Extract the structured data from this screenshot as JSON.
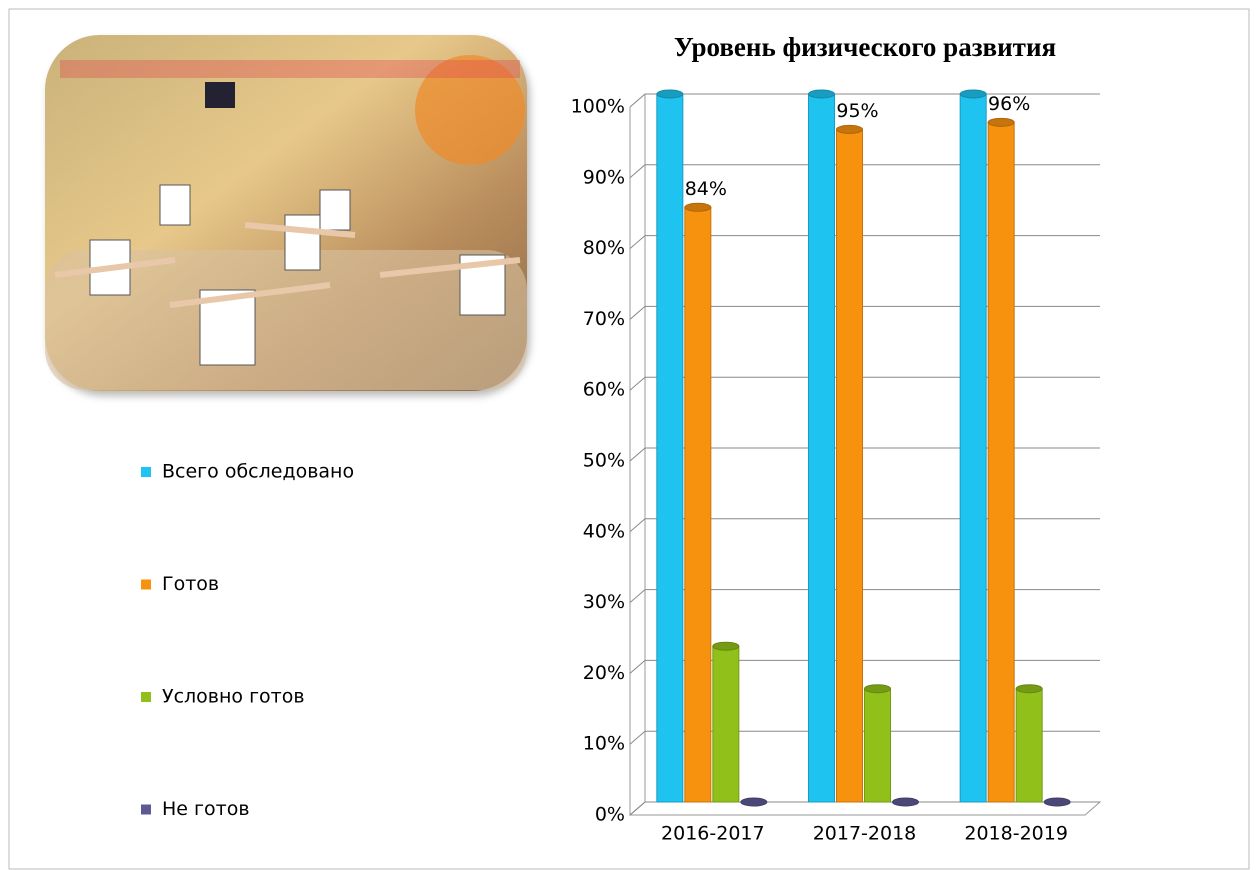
{
  "chart_data": {
    "type": "bar",
    "title": "Уровень физического развития",
    "categories": [
      "2016-2017",
      "2017-2018",
      "2018-2019"
    ],
    "series": [
      {
        "name": "Всего обследовано",
        "color": "#1ec3f0",
        "values": [
          100,
          100,
          100
        ]
      },
      {
        "name": "Готов",
        "color": "#f7920f",
        "values": [
          84,
          95,
          96
        ],
        "value_labels": [
          "84%",
          "95%",
          "96%"
        ]
      },
      {
        "name": "Условно готов",
        "color": "#92c01a",
        "values": [
          22,
          16,
          16
        ]
      },
      {
        "name": "Не готов",
        "color": "#5b5a94",
        "values": [
          0,
          0,
          0
        ]
      }
    ],
    "ylim": [
      0,
      100
    ],
    "yticks": [
      {
        "value": 0,
        "label": "0%"
      },
      {
        "value": 10,
        "label": "10%"
      },
      {
        "value": 20,
        "label": "20%"
      },
      {
        "value": 30,
        "label": "30%"
      },
      {
        "value": 40,
        "label": "40%"
      },
      {
        "value": 50,
        "label": "50%"
      },
      {
        "value": 60,
        "label": "60%"
      },
      {
        "value": 70,
        "label": "70%"
      },
      {
        "value": 80,
        "label": "80%"
      },
      {
        "value": 90,
        "label": "90%"
      },
      {
        "value": 100,
        "label": "100%"
      }
    ],
    "grid": true,
    "legend": "left"
  }
}
